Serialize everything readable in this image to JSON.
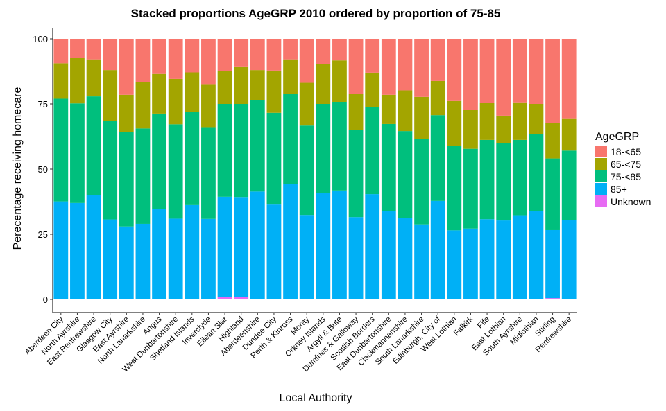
{
  "chart_data": {
    "type": "bar",
    "stacked": true,
    "title": "Stacked proportions AgeGRP 2010 ordered by proportion of 75-85",
    "xlabel": "Local Authority",
    "ylabel": "Perecentage receiving homecare",
    "ylim": [
      0,
      100
    ],
    "yticks": [
      0,
      25,
      50,
      75,
      100
    ],
    "grid": false,
    "legend": {
      "title": "AgeGRP",
      "placement": "right"
    },
    "categories": [
      "Aberdeen City",
      "North Ayrshire",
      "East Renfrewshire",
      "Glasgow City",
      "East Ayrshire",
      "North Lanarkshire",
      "Angus",
      "West Dunbartonshire",
      "Shetland Islands",
      "Inverclyde",
      "Eilean Siar",
      "Highland",
      "Aberdeenshire",
      "Dundee City",
      "Perth & Kinross",
      "Moray",
      "Orkney Islands",
      "Argyll & Bute",
      "Dumfries & Galloway",
      "Scottish Borders",
      "East Dunbartonshire",
      "Clackmannanshire",
      "South Lanarkshire",
      "Edinburgh, City of",
      "West Lothian",
      "Falkirk",
      "Fife",
      "East Lothian",
      "South Ayrshire",
      "Midlothian",
      "Stirling",
      "Renfrewshire"
    ],
    "series": [
      {
        "name": "Unknown",
        "color": "#E76BF3",
        "values": [
          0,
          0,
          0,
          0,
          0,
          0,
          0,
          0,
          0,
          0,
          0.8,
          0.8,
          0,
          0,
          0,
          0,
          0,
          0,
          0,
          0,
          0,
          0,
          0,
          0,
          0,
          0,
          0,
          0,
          0,
          0,
          0.5,
          0
        ]
      },
      {
        "name": "85+",
        "color": "#00B0F6",
        "values": [
          37.6,
          37,
          40,
          30.7,
          28,
          29,
          34.8,
          31,
          36.2,
          30.9,
          38.6,
          38.5,
          41.4,
          36.4,
          44.2,
          32.4,
          40.8,
          41.8,
          31.6,
          40.4,
          33.8,
          31.2,
          28.8,
          37.8,
          26.5,
          27.2,
          30.8,
          30.3,
          32.3,
          34,
          26.1,
          30.4
        ]
      },
      {
        "name": "75-<85",
        "color": "#00BF7D",
        "values": [
          39.4,
          38.2,
          37.9,
          37.8,
          36.2,
          36.6,
          36.5,
          36.2,
          35.7,
          35.2,
          35.6,
          35.7,
          35.1,
          35.2,
          34.6,
          34.3,
          34.2,
          34,
          33.4,
          33.3,
          33.5,
          33.4,
          32.8,
          32.9,
          32.3,
          30.6,
          30.4,
          29.6,
          28.9,
          29.3,
          27.5,
          26.7
        ]
      },
      {
        "name": "65-<75",
        "color": "#A3A500",
        "values": [
          13.6,
          17.4,
          14.2,
          19.5,
          14.3,
          17.8,
          15.2,
          17.4,
          15.2,
          16.5,
          12.5,
          14.4,
          11.5,
          16.2,
          13.3,
          16.4,
          15.2,
          15.9,
          13.8,
          13.3,
          11.2,
          15.6,
          16.1,
          13.1,
          17.3,
          15,
          14.3,
          10.6,
          14.4,
          11.7,
          13.5,
          12.4
        ]
      },
      {
        "name": "18-<65",
        "color": "#F8766D",
        "values": [
          9.4,
          7.4,
          7.9,
          12,
          21.5,
          16.6,
          13.5,
          15.4,
          12.9,
          17.4,
          12.5,
          10.6,
          12,
          12.2,
          7.9,
          16.9,
          9.8,
          8.3,
          21.2,
          13,
          21.5,
          19.8,
          22.3,
          16.2,
          23.9,
          27.2,
          24.5,
          29.5,
          24.4,
          25,
          32.4,
          30.5
        ]
      }
    ],
    "legend_order": [
      "18-<65",
      "65-<75",
      "75-<85",
      "85+",
      "Unknown"
    ]
  }
}
